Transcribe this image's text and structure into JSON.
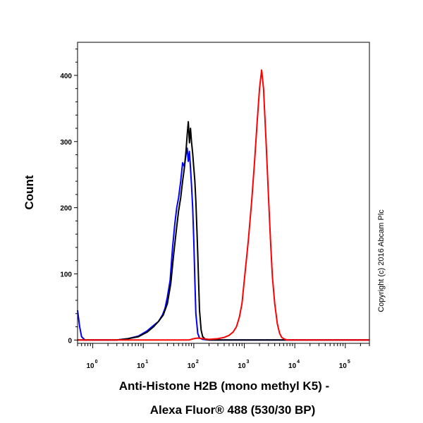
{
  "chart_data": {
    "type": "line",
    "title": "",
    "xlabel_line1": "Anti-Histone H2B (mono methyl K5) -",
    "xlabel_line2": "Alexa Fluor® 488 (530/30 BP)",
    "ylabel": "Count",
    "xscale": "log",
    "xlim": [
      0.5,
      300000
    ],
    "ylim": [
      -5,
      450
    ],
    "grid": false,
    "legend": "none",
    "x_ticks": [
      {
        "value": 1,
        "base": "10",
        "exp": "0"
      },
      {
        "value": 10,
        "base": "10",
        "exp": "1"
      },
      {
        "value": 100,
        "base": "10",
        "exp": "2"
      },
      {
        "value": 1000,
        "base": "10",
        "exp": "3"
      },
      {
        "value": 10000,
        "base": "10",
        "exp": "4"
      },
      {
        "value": 100000,
        "base": "10",
        "exp": "5"
      }
    ],
    "y_ticks": [
      "0",
      "100",
      "200",
      "300",
      "400"
    ],
    "y_tick_values": [
      0,
      100,
      200,
      300,
      400
    ],
    "annotation": "Copyright (c) 2016 Abcam Plc",
    "series": [
      {
        "color": "#0000ff",
        "x": [
          0.5,
          0.55,
          0.6,
          0.7,
          1,
          3,
          5,
          8,
          12,
          16,
          20,
          24,
          27,
          30,
          34,
          38,
          42,
          46,
          50,
          55,
          60,
          65,
          70,
          74,
          78,
          82,
          86,
          90,
          95,
          100,
          105,
          110,
          120,
          130,
          150,
          200,
          500,
          300000
        ],
        "y": [
          45,
          20,
          5,
          0,
          0,
          0,
          2,
          6,
          14,
          22,
          28,
          38,
          48,
          65,
          90,
          140,
          175,
          200,
          215,
          240,
          268,
          262,
          280,
          290,
          270,
          285,
          260,
          235,
          200,
          150,
          90,
          40,
          10,
          3,
          1,
          0,
          0,
          0
        ]
      },
      {
        "color": "#000000",
        "x": [
          0.5,
          1,
          3,
          5,
          8,
          12,
          16,
          20,
          25,
          30,
          35,
          40,
          45,
          50,
          55,
          60,
          65,
          70,
          74,
          78,
          82,
          86,
          90,
          95,
          100,
          105,
          110,
          115,
          120,
          125,
          130,
          140,
          150,
          170,
          200,
          300,
          1000,
          300000
        ],
        "y": [
          0,
          0,
          0,
          2,
          5,
          12,
          20,
          28,
          38,
          55,
          85,
          130,
          165,
          195,
          215,
          240,
          260,
          285,
          310,
          330,
          298,
          320,
          300,
          282,
          260,
          240,
          210,
          170,
          130,
          85,
          45,
          15,
          5,
          1,
          0,
          0,
          0,
          0
        ]
      },
      {
        "color": "#ff0000",
        "x": [
          0.5,
          80,
          100,
          120,
          150,
          200,
          300,
          400,
          500,
          600,
          700,
          800,
          900,
          1000,
          1200,
          1400,
          1600,
          1800,
          2000,
          2200,
          2400,
          2700,
          3000,
          3300,
          3600,
          4000,
          4500,
          5000,
          5500,
          6000,
          7000,
          8000,
          300000
        ],
        "y": [
          0,
          0,
          2,
          3,
          2,
          1,
          2,
          4,
          7,
          12,
          20,
          35,
          55,
          90,
          150,
          210,
          270,
          330,
          380,
          408,
          380,
          300,
          220,
          150,
          95,
          55,
          25,
          10,
          4,
          2,
          0,
          0,
          0
        ]
      }
    ]
  }
}
